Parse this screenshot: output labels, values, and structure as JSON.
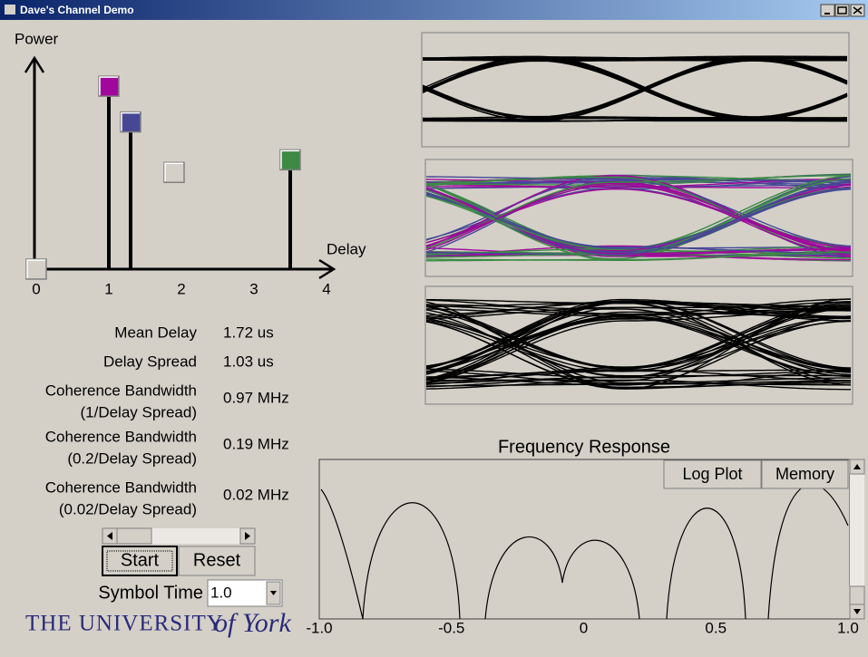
{
  "window": {
    "title": "Dave's Channel Demo"
  },
  "delay_profile": {
    "y_label": "Power",
    "x_label": "Delay",
    "xlim": [
      0,
      4
    ],
    "xticks": [
      0,
      1,
      2,
      3,
      4
    ],
    "ylim": [
      0,
      1
    ],
    "taps": [
      {
        "delay": 0,
        "power": 0,
        "color": "#d4d0c8",
        "active": false
      },
      {
        "delay": 1.0,
        "power": 0.87,
        "color": "#a0089c",
        "active": true
      },
      {
        "delay": 1.3,
        "power": 0.7,
        "color": "#464896",
        "active": true
      },
      {
        "delay": 1.9,
        "power": 0.46,
        "color": "#d4d0c8",
        "active": false
      },
      {
        "delay": 3.5,
        "power": 0.52,
        "color": "#3c8a44",
        "active": true
      }
    ]
  },
  "stats": [
    {
      "label": [
        "Mean Delay"
      ],
      "value": "1.72 us"
    },
    {
      "label": [
        "Delay Spread"
      ],
      "value": "1.03 us"
    },
    {
      "label": [
        "Coherence Bandwidth",
        "(1/Delay Spread)"
      ],
      "value": "0.97 MHz"
    },
    {
      "label": [
        "Coherence Bandwidth",
        "(0.2/Delay Spread)"
      ],
      "value": "0.19 MHz"
    },
    {
      "label": [
        "Coherence Bandwidth",
        "(0.02/Delay Spread)"
      ],
      "value": "0.02 MHz"
    }
  ],
  "controls": {
    "start": "Start",
    "reset": "Reset",
    "symbol_time_label": "Symbol Time",
    "symbol_time": "1.0"
  },
  "logo": {
    "name": "THE UNIVERSITY",
    "script": "of York"
  },
  "frequency_response": {
    "title": "Frequency Response",
    "buttons": [
      "Log Plot",
      "Memory"
    ],
    "xlim": [
      -1,
      1
    ],
    "xticks": [
      {
        "value": -1,
        "label": "-1.0"
      },
      -0.5,
      0,
      0.5,
      {
        "value": 1,
        "label": "1.0"
      }
    ]
  }
}
